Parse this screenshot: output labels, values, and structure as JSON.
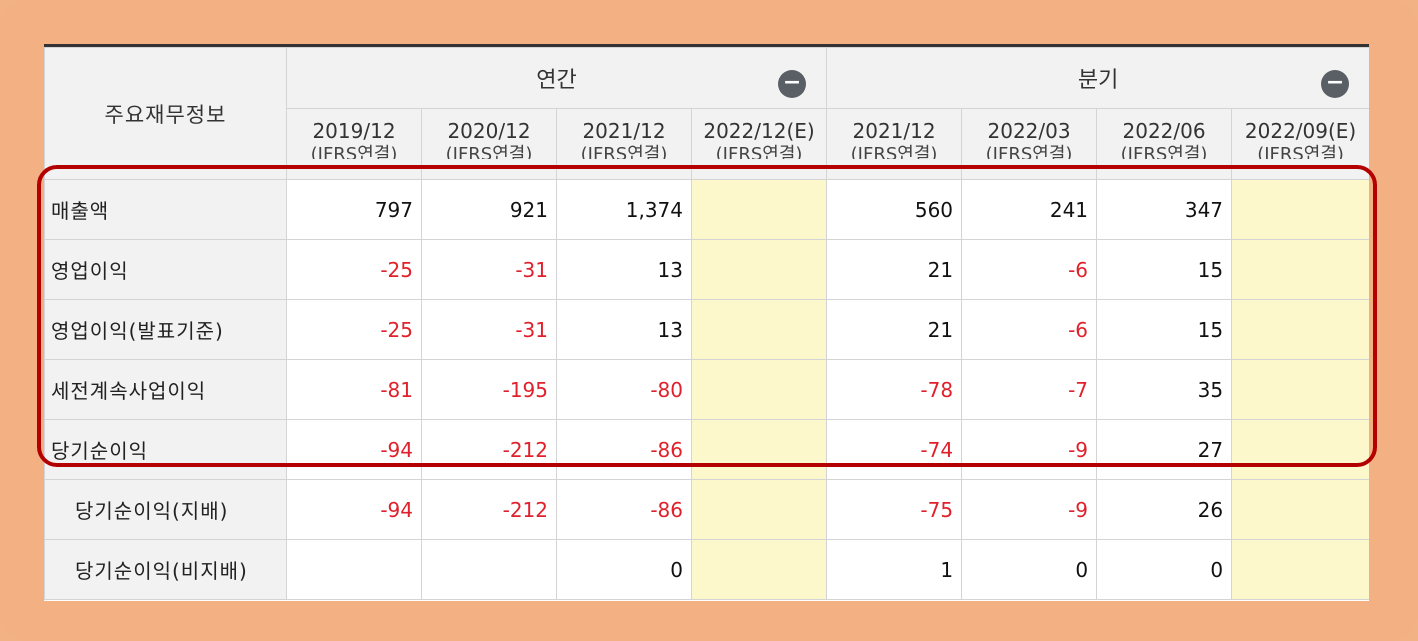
{
  "header": {
    "main_label": "주요재무정보",
    "group_annual": "연간",
    "group_quarter": "분기",
    "collapse_symbol": "−",
    "periods": [
      {
        "date": "2019/12",
        "basis": "(IFRS연결)"
      },
      {
        "date": "2020/12",
        "basis": "(IFRS연결)"
      },
      {
        "date": "2021/12",
        "basis": "(IFRS연결)"
      },
      {
        "date": "2022/12(E)",
        "basis": "(IFRS연결)"
      },
      {
        "date": "2021/12",
        "basis": "(IFRS연결)"
      },
      {
        "date": "2022/03",
        "basis": "(IFRS연결)"
      },
      {
        "date": "2022/06",
        "basis": "(IFRS연결)"
      },
      {
        "date": "2022/09(E)",
        "basis": "(IFRS연결)"
      }
    ]
  },
  "rows": [
    {
      "label": "매출액",
      "values": [
        "797",
        "921",
        "1,374",
        "",
        "560",
        "241",
        "347",
        ""
      ]
    },
    {
      "label": "영업이익",
      "values": [
        "-25",
        "-31",
        "13",
        "",
        "21",
        "-6",
        "15",
        ""
      ]
    },
    {
      "label": "영업이익(발표기준)",
      "values": [
        "-25",
        "-31",
        "13",
        "",
        "21",
        "-6",
        "15",
        ""
      ]
    },
    {
      "label": "세전계속사업이익",
      "values": [
        "-81",
        "-195",
        "-80",
        "",
        "-78",
        "-7",
        "35",
        ""
      ]
    },
    {
      "label": "당기순이익",
      "values": [
        "-94",
        "-212",
        "-86",
        "",
        "-74",
        "-9",
        "27",
        ""
      ]
    },
    {
      "label": "당기순이익(지배)",
      "values": [
        "-94",
        "-212",
        "-86",
        "",
        "-75",
        "-9",
        "26",
        ""
      ]
    },
    {
      "label": "당기순이익(비지배)",
      "values": [
        "",
        "",
        "0",
        "",
        "1",
        "0",
        "0",
        ""
      ]
    }
  ],
  "colors": {
    "negative": "#e0202a",
    "estimate_fill": "#fdf7cc",
    "highlight_border": "#b30000",
    "frame": "#f3b083"
  }
}
